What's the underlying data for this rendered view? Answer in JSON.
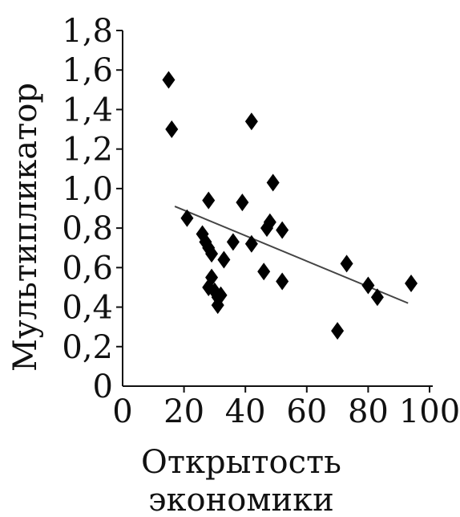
{
  "chart_data": {
    "type": "scatter",
    "title": "",
    "xlabel_lines": [
      "Открытость",
      "экономики"
    ],
    "ylabel": "Мультипликатор",
    "xlim": [
      0,
      100
    ],
    "ylim": [
      0,
      1.8
    ],
    "xticks": [
      0,
      20,
      40,
      60,
      80,
      100
    ],
    "xtick_labels": [
      "0",
      "20",
      "40",
      "60",
      "80",
      "100"
    ],
    "yticks": [
      0,
      0.2,
      0.4,
      0.6,
      0.8,
      1.0,
      1.2,
      1.4,
      1.6,
      1.8
    ],
    "ytick_labels": [
      "0",
      "0,2",
      "0,4",
      "0,6",
      "0,8",
      "1,0",
      "1,2",
      "1,4",
      "1,6",
      "1,8"
    ],
    "grid": false,
    "legend": "none",
    "marker": "diamond",
    "marker_color": "#000000",
    "trendline_color": "#444444",
    "points": [
      {
        "x": 15,
        "y": 1.55
      },
      {
        "x": 16,
        "y": 1.3
      },
      {
        "x": 21,
        "y": 0.85
      },
      {
        "x": 26,
        "y": 0.77
      },
      {
        "x": 27,
        "y": 0.73
      },
      {
        "x": 28,
        "y": 0.94
      },
      {
        "x": 28,
        "y": 0.7
      },
      {
        "x": 28,
        "y": 0.5
      },
      {
        "x": 29,
        "y": 0.67
      },
      {
        "x": 29,
        "y": 0.55
      },
      {
        "x": 30,
        "y": 0.48
      },
      {
        "x": 31,
        "y": 0.45
      },
      {
        "x": 31,
        "y": 0.41
      },
      {
        "x": 32,
        "y": 0.46
      },
      {
        "x": 33,
        "y": 0.64
      },
      {
        "x": 36,
        "y": 0.73
      },
      {
        "x": 39,
        "y": 0.93
      },
      {
        "x": 42,
        "y": 1.34
      },
      {
        "x": 42,
        "y": 0.72
      },
      {
        "x": 46,
        "y": 0.58
      },
      {
        "x": 47,
        "y": 0.8
      },
      {
        "x": 48,
        "y": 0.83
      },
      {
        "x": 49,
        "y": 1.03
      },
      {
        "x": 52,
        "y": 0.79
      },
      {
        "x": 52,
        "y": 0.53
      },
      {
        "x": 70,
        "y": 0.28
      },
      {
        "x": 73,
        "y": 0.62
      },
      {
        "x": 80,
        "y": 0.51
      },
      {
        "x": 83,
        "y": 0.45
      },
      {
        "x": 94,
        "y": 0.52
      }
    ],
    "trendline": {
      "x": [
        17,
        93
      ],
      "y": [
        0.91,
        0.42
      ]
    }
  }
}
